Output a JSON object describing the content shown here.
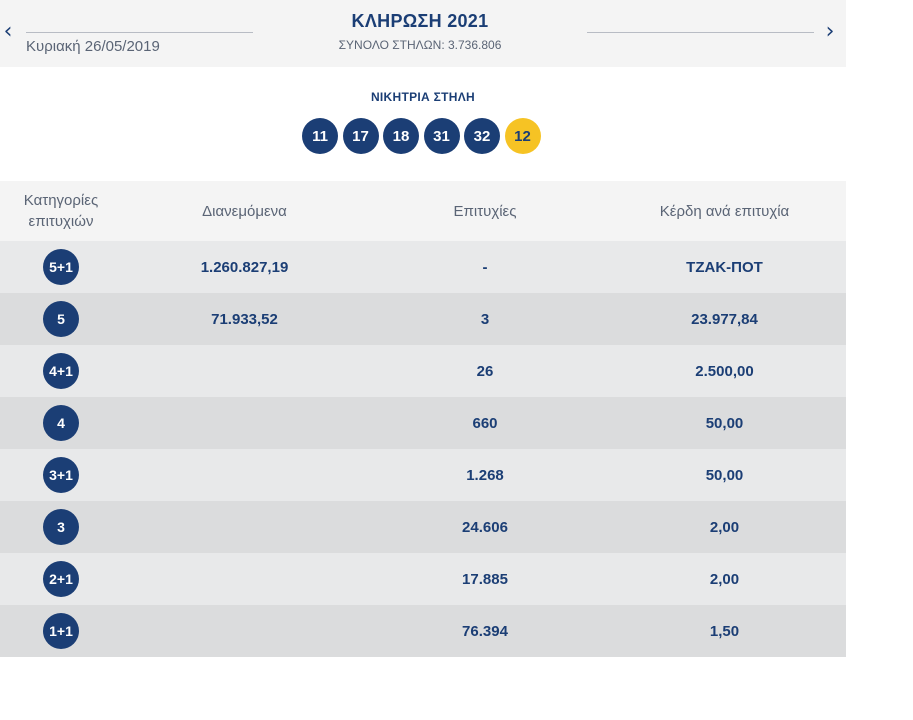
{
  "header": {
    "prev_icon": "chevron-left-icon",
    "next_icon": "chevron-right-icon",
    "prev_glyph": "‹",
    "next_glyph": "›",
    "date": "Κυριακή 26/05/2019",
    "draw_title": "ΚΛΗΡΩΣΗ 2021",
    "total_columns": "ΣΥΝΟΛΟ ΣΤΗΛΩΝ: 3.736.806"
  },
  "winning": {
    "label": "ΝΙΚΗΤΡΙΑ ΣΤΗΛΗ",
    "numbers": [
      "11",
      "17",
      "18",
      "31",
      "32"
    ],
    "joker": "12"
  },
  "table": {
    "headers": {
      "category": "Κατηγορίες επιτυχιών",
      "distributed": "Διανεμόμενα",
      "winners": "Επιτυχίες",
      "prize": "Κέρδη ανά επιτυχία"
    },
    "rows": [
      {
        "category": "5+1",
        "distributed": "1.260.827,19",
        "winners": "-",
        "prize": "ΤΖΑΚ-ΠΟΤ"
      },
      {
        "category": "5",
        "distributed": "71.933,52",
        "winners": "3",
        "prize": "23.977,84"
      },
      {
        "category": "4+1",
        "distributed": "",
        "winners": "26",
        "prize": "2.500,00"
      },
      {
        "category": "4",
        "distributed": "",
        "winners": "660",
        "prize": "50,00"
      },
      {
        "category": "3+1",
        "distributed": "",
        "winners": "1.268",
        "prize": "50,00"
      },
      {
        "category": "3",
        "distributed": "",
        "winners": "24.606",
        "prize": "2,00"
      },
      {
        "category": "2+1",
        "distributed": "",
        "winners": "17.885",
        "prize": "2,00"
      },
      {
        "category": "1+1",
        "distributed": "",
        "winners": "76.394",
        "prize": "1,50"
      }
    ]
  },
  "colors": {
    "primary": "#1b3e75",
    "joker": "#f6c324",
    "row_light": "#e8e9ea",
    "row_dark": "#dbdcdd",
    "header_bg": "#f4f4f4"
  }
}
